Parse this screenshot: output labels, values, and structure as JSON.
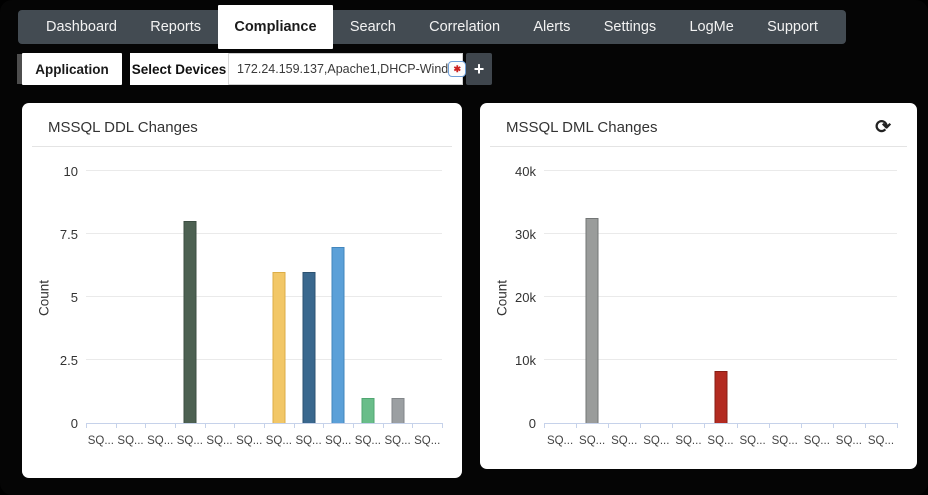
{
  "nav": {
    "items": [
      {
        "label": "Dashboard",
        "active": false
      },
      {
        "label": "Reports",
        "active": false
      },
      {
        "label": "Compliance",
        "active": true
      },
      {
        "label": "Search",
        "active": false
      },
      {
        "label": "Correlation",
        "active": false
      },
      {
        "label": "Alerts",
        "active": false
      },
      {
        "label": "Settings",
        "active": false
      },
      {
        "label": "LogMe",
        "active": false
      },
      {
        "label": "Support",
        "active": false
      }
    ]
  },
  "filter_bar": {
    "application_button": "Application",
    "select_devices_label": "Select Devices",
    "devices_input_value": "172.24.159.137,Apache1,DHCP-Wind",
    "add_button_label": "+"
  },
  "icons": {
    "refresh": "⟳",
    "required_star": "✱"
  },
  "colors": {
    "page_bg": "#050505",
    "navbar_bg": "#434b52",
    "active_tab_bg": "#ffffff",
    "panel_bg": "#ffffff",
    "gridline": "#eaeaea",
    "axis_line": "#c6d2ea",
    "add_button_bg": "#3f464d"
  },
  "chart_data": [
    {
      "type": "bar",
      "title": "MSSQL DDL Changes",
      "ylabel": "Count",
      "xlabel": "",
      "ymax": 10,
      "ytick_labels": [
        "0",
        "2.5",
        "5",
        "7.5",
        "10"
      ],
      "grid": true,
      "legend": false,
      "has_refresh": false,
      "categories": [
        "SQ...",
        "SQ...",
        "SQ...",
        "SQ...",
        "SQ...",
        "SQ...",
        "SQ...",
        "SQ...",
        "SQ...",
        "SQ...",
        "SQ...",
        "SQ..."
      ],
      "values": [
        0,
        0,
        0,
        8,
        0,
        0,
        6,
        6,
        7,
        1,
        1,
        0
      ],
      "bar_colors": [
        "",
        "",
        "",
        "#4d6152",
        "",
        "",
        "#f2c767",
        "#3a688e",
        "#5ba0d8",
        "#69bd89",
        "#9b9fa2",
        ""
      ],
      "bar_borders": [
        "",
        "",
        "",
        "#3c4e42",
        "",
        "",
        "#dcae47",
        "#2c5271",
        "#4286bd",
        "#50a671",
        "#828689",
        ""
      ]
    },
    {
      "type": "bar",
      "title": "MSSQL DML Changes",
      "ylabel": "Count",
      "xlabel": "",
      "ymax": 40000,
      "ytick_labels": [
        "0",
        "10k",
        "20k",
        "30k",
        "40k"
      ],
      "grid": true,
      "legend": false,
      "has_refresh": true,
      "categories": [
        "SQ...",
        "SQ...",
        "SQ...",
        "SQ...",
        "SQ...",
        "SQ...",
        "SQ...",
        "SQ...",
        "SQ...",
        "SQ...",
        "SQ..."
      ],
      "values": [
        0,
        32500,
        0,
        0,
        0,
        8200,
        0,
        0,
        0,
        0,
        0
      ],
      "bar_colors": [
        "",
        "#9a9c9b",
        "",
        "",
        "",
        "#b32b21",
        "",
        "",
        "",
        "",
        ""
      ],
      "bar_borders": [
        "",
        "#737676",
        "",
        "",
        "",
        "#871e15",
        "",
        "",
        "",
        "",
        ""
      ]
    }
  ]
}
